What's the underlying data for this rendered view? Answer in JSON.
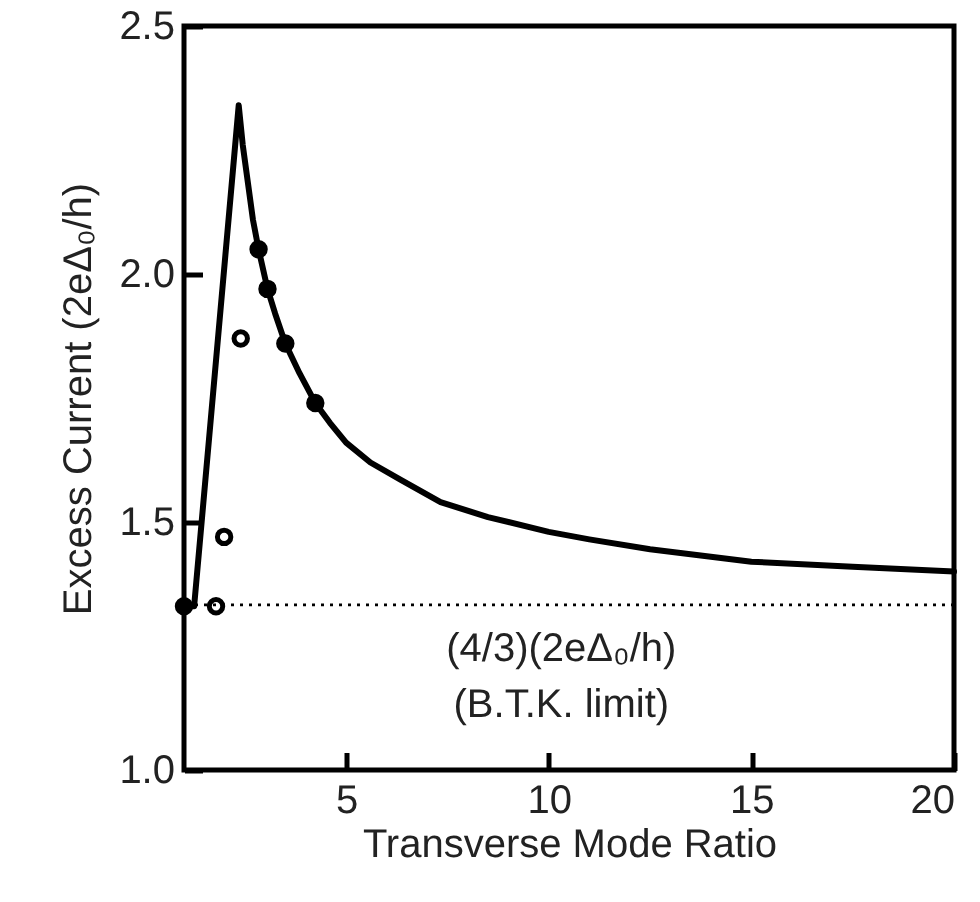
{
  "chart_data": {
    "type": "line",
    "xlabel": "Transverse Mode Ratio",
    "ylabel": "Excess Current (2eΔ₀/h)",
    "xlim": [
      1,
      20
    ],
    "ylim": [
      1.0,
      2.5
    ],
    "xticks": [
      5,
      10,
      15,
      20
    ],
    "yticks": [
      {
        "value": 1,
        "label": "1.0"
      },
      {
        "value": 1.5,
        "label": "1.5"
      },
      {
        "value": 2,
        "label": "2.0"
      },
      {
        "value": 2.5,
        "label": "2.5"
      }
    ],
    "grid": false,
    "series": [
      {
        "color": "#000000",
        "marker": "none",
        "line_style": "solid",
        "x": [
          1,
          1.25,
          2.35,
          2.45,
          2.6,
          2.7,
          2.84,
          3.06,
          3.25,
          3.5,
          3.85,
          4.24,
          4.6,
          5,
          5.6,
          6.35,
          7.33,
          8.5,
          10,
          11,
          12.5,
          15,
          17.5,
          20
        ],
        "values": [
          1.33,
          1.33,
          2.34,
          2.26,
          2.17,
          2.11,
          2.05,
          1.97,
          1.92,
          1.86,
          1.8,
          1.74,
          1.7,
          1.66,
          1.62,
          1.585,
          1.54,
          1.51,
          1.48,
          1.465,
          1.445,
          1.42,
          1.41,
          1.4
        ]
      },
      {
        "type": "scatter",
        "color": "#000000",
        "marker": "circle",
        "x": [
          1,
          2.84,
          3.06,
          3.5,
          4.24
        ],
        "values": [
          1.33,
          2.05,
          1.97,
          1.86,
          1.74
        ]
      },
      {
        "type": "scatter",
        "color": "#ffffff",
        "marker": "circle",
        "x": [
          1.79,
          1.99,
          2.4
        ],
        "values": [
          1.33,
          1.47,
          1.87
        ]
      }
    ],
    "ref_lines": [
      {
        "axis": "y",
        "value": 1.333,
        "label": "(4/3)(2eΔ₀/h)",
        "line_style": "dotted",
        "color": "#000000"
      }
    ],
    "annotations": [
      "(B.T.K. limit)"
    ]
  }
}
